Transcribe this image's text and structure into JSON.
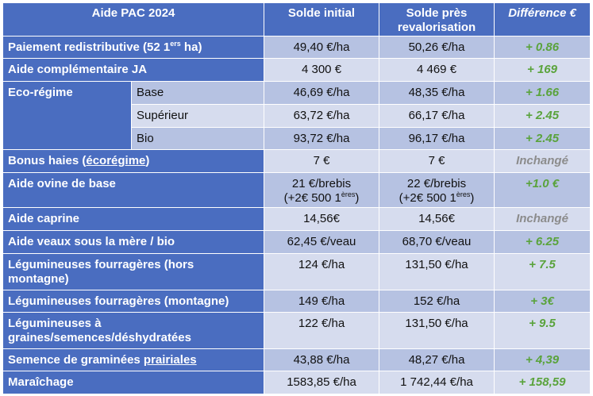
{
  "headers": {
    "col1": "Aide PAC 2024",
    "col2": "Solde initial",
    "col3_line1": "Solde près",
    "col3_line2": "revalorisation",
    "col4": "Différence €"
  },
  "rows": [
    {
      "label_main": "Paiement redistributive (52 1",
      "label_sup": "ers",
      "label_tail": " ha)",
      "initial": "49,40 €/ha",
      "revalo": "50,26 €/ha",
      "diff": "+ 0.86",
      "diff_type": "pos"
    },
    {
      "label": "Aide complémentaire JA",
      "initial": "4 300 €",
      "revalo": "4 469 €",
      "diff": "+ 169",
      "diff_type": "pos"
    },
    {
      "label": "Eco-régime",
      "sub": "Base",
      "initial": "46,69 €/ha",
      "revalo": "48,35 €/ha",
      "diff": "+ 1.66",
      "diff_type": "pos"
    },
    {
      "sub": "Supérieur",
      "initial": "63,72 €/ha",
      "revalo": "66,17 €/ha",
      "diff": "+ 2.45",
      "diff_type": "pos"
    },
    {
      "sub": "Bio",
      "initial": "93,72 €/ha",
      "revalo": "96,17 €/ha",
      "diff": "+ 2.45",
      "diff_type": "pos"
    },
    {
      "label_main": "Bonus haies (",
      "label_u": "écorégime",
      "label_tail": ")",
      "initial": "7 €",
      "revalo": "7 €",
      "diff": "Inchangé",
      "diff_type": "same"
    },
    {
      "label": "Aide ovine de base",
      "initial_l1": "21 €/brebis",
      "initial_l2": "(+2€ 500 1",
      "initial_sup": "ères",
      "initial_l2_tail": ")",
      "revalo_l1": "22 €/brebis",
      "revalo_l2": "(+2€ 500 1",
      "revalo_sup": "ères",
      "revalo_l2_tail": ")",
      "diff": "+1.0 €",
      "diff_type": "pos"
    },
    {
      "label": "Aide caprine",
      "initial": "14,56€",
      "revalo": "14,56€",
      "diff": "Inchangé",
      "diff_type": "same"
    },
    {
      "label": "Aide veaux sous la mère / bio",
      "initial": "62,45 €/veau",
      "revalo": "68,70 €/veau",
      "diff": "+ 6.25",
      "diff_type": "pos"
    },
    {
      "label_l1": "Légumineuses fourragères (hors",
      "label_l2": "montagne)",
      "initial": "124 €/ha",
      "revalo": "131,50 €/ha",
      "diff": "+ 7.5",
      "diff_type": "pos"
    },
    {
      "label": "Légumineuses fourragères (montagne)",
      "initial": "149 €/ha",
      "revalo": "152 €/ha",
      "diff": "+ 3€",
      "diff_type": "pos"
    },
    {
      "label_l1": "Légumineuses à",
      "label_l2": "graines/semences/déshydratées",
      "initial": "122 €/ha",
      "revalo": "131,50 €/ha",
      "diff": "+ 9.5",
      "diff_type": "pos"
    },
    {
      "label_main": "Semence de graminées ",
      "label_u": "prairiales",
      "initial": "43,88 €/ha",
      "revalo": "48,27 €/ha",
      "diff": "+ 4,39",
      "diff_type": "pos"
    },
    {
      "label": "Maraîchage",
      "initial": "1583,85 €/ha",
      "revalo": "1 742,44 €/ha",
      "diff": "+ 158,59",
      "diff_type": "pos"
    }
  ],
  "colors": {
    "header": "#4a6dc0",
    "row_light": "#d6dcee",
    "row_dark": "#b6c2e2",
    "positive": "#5aa33c",
    "unchanged": "#8c8c8c"
  }
}
